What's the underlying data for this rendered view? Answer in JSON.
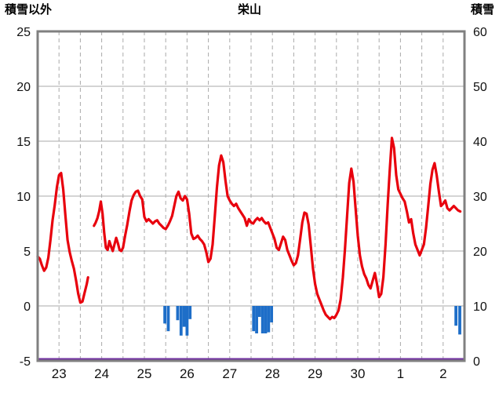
{
  "header": {
    "left_axis_title": "積雪以外",
    "title": "栄山",
    "right_axis_title": "積雪"
  },
  "colors": {
    "temperature_line": "#e8000d",
    "bar": "#1e6ec8",
    "snow_line": "#7030a0",
    "frame": "#808080",
    "grid": "#aaaaaa",
    "tick_text": "#111111",
    "background": "#ffffff"
  },
  "chart_data": {
    "type": "line",
    "title": "栄山",
    "left_axis": {
      "label": "積雪以外",
      "min": -5,
      "max": 25,
      "ticks": [
        25,
        20,
        15,
        10,
        5,
        0,
        -5
      ]
    },
    "right_axis": {
      "label": "積雪",
      "min": 0,
      "max": 60,
      "ticks": [
        60,
        50,
        40,
        30,
        20,
        10,
        0
      ]
    },
    "x_axis": {
      "days": 10,
      "labels": [
        "23",
        "24",
        "25",
        "26",
        "27",
        "28",
        "29",
        "30",
        "1",
        "2"
      ],
      "gridline_interval_days": 0.5,
      "grid_dashed": true
    },
    "series": [
      {
        "name": "積雪以外(気温)",
        "type": "line",
        "axis": "left",
        "points": [
          [
            0.0,
            4.5
          ],
          [
            0.05,
            4.3
          ],
          [
            0.1,
            3.7
          ],
          [
            0.15,
            3.2
          ],
          [
            0.2,
            3.5
          ],
          [
            0.25,
            4.4
          ],
          [
            0.3,
            6.0
          ],
          [
            0.35,
            7.8
          ],
          [
            0.4,
            9.2
          ],
          [
            0.45,
            10.8
          ],
          [
            0.5,
            11.9
          ],
          [
            0.55,
            12.1
          ],
          [
            0.6,
            10.6
          ],
          [
            0.65,
            8.2
          ],
          [
            0.7,
            6.0
          ],
          [
            0.75,
            4.9
          ],
          [
            0.8,
            4.1
          ],
          [
            0.85,
            3.4
          ],
          [
            0.9,
            2.3
          ],
          [
            0.95,
            1.1
          ],
          [
            1.0,
            0.3
          ],
          [
            1.05,
            0.4
          ],
          [
            1.1,
            1.2
          ],
          [
            1.15,
            2.0
          ],
          [
            1.18,
            2.6
          ],
          null,
          [
            1.32,
            7.3
          ],
          [
            1.36,
            7.6
          ],
          [
            1.4,
            8.0
          ],
          [
            1.44,
            8.6
          ],
          [
            1.48,
            9.5
          ],
          [
            1.52,
            8.4
          ],
          [
            1.56,
            6.6
          ],
          [
            1.6,
            5.3
          ],
          [
            1.64,
            5.1
          ],
          [
            1.68,
            5.9
          ],
          [
            1.72,
            5.4
          ],
          [
            1.76,
            5.0
          ],
          [
            1.8,
            5.6
          ],
          [
            1.84,
            6.2
          ],
          [
            1.88,
            5.7
          ],
          [
            1.92,
            5.1
          ],
          [
            1.96,
            5.0
          ],
          [
            2.0,
            5.3
          ],
          [
            2.05,
            6.4
          ],
          [
            2.1,
            7.4
          ],
          [
            2.15,
            8.6
          ],
          [
            2.2,
            9.6
          ],
          [
            2.25,
            10.1
          ],
          [
            2.3,
            10.4
          ],
          [
            2.35,
            10.5
          ],
          [
            2.4,
            10.0
          ],
          [
            2.45,
            9.7
          ],
          [
            2.5,
            8.1
          ],
          [
            2.55,
            7.7
          ],
          [
            2.6,
            7.9
          ],
          [
            2.65,
            7.7
          ],
          [
            2.7,
            7.5
          ],
          [
            2.75,
            7.7
          ],
          [
            2.8,
            7.8
          ],
          [
            2.85,
            7.5
          ],
          [
            2.9,
            7.3
          ],
          [
            2.95,
            7.1
          ],
          [
            3.0,
            7.0
          ],
          [
            3.05,
            7.3
          ],
          [
            3.1,
            7.7
          ],
          [
            3.15,
            8.2
          ],
          [
            3.2,
            9.1
          ],
          [
            3.25,
            10.0
          ],
          [
            3.3,
            10.4
          ],
          [
            3.35,
            9.8
          ],
          [
            3.4,
            9.6
          ],
          [
            3.45,
            10.0
          ],
          [
            3.5,
            9.7
          ],
          [
            3.55,
            8.4
          ],
          [
            3.6,
            6.6
          ],
          [
            3.65,
            6.1
          ],
          [
            3.7,
            6.2
          ],
          [
            3.75,
            6.4
          ],
          [
            3.8,
            6.1
          ],
          [
            3.85,
            5.9
          ],
          [
            3.9,
            5.6
          ],
          [
            3.95,
            4.9
          ],
          [
            4.0,
            4.0
          ],
          [
            4.05,
            4.3
          ],
          [
            4.1,
            5.6
          ],
          [
            4.15,
            8.2
          ],
          [
            4.2,
            10.8
          ],
          [
            4.25,
            12.8
          ],
          [
            4.3,
            13.7
          ],
          [
            4.35,
            13.1
          ],
          [
            4.4,
            11.4
          ],
          [
            4.45,
            10.0
          ],
          [
            4.5,
            9.6
          ],
          [
            4.55,
            9.3
          ],
          [
            4.6,
            9.1
          ],
          [
            4.65,
            9.3
          ],
          [
            4.7,
            8.9
          ],
          [
            4.75,
            8.6
          ],
          [
            4.8,
            8.3
          ],
          [
            4.85,
            8.0
          ],
          [
            4.9,
            7.3
          ],
          [
            4.95,
            7.9
          ],
          [
            5.0,
            7.6
          ],
          [
            5.05,
            7.5
          ],
          [
            5.1,
            7.8
          ],
          [
            5.15,
            8.0
          ],
          [
            5.2,
            7.8
          ],
          [
            5.25,
            8.0
          ],
          [
            5.3,
            7.7
          ],
          [
            5.35,
            7.5
          ],
          [
            5.4,
            7.6
          ],
          [
            5.45,
            7.1
          ],
          [
            5.5,
            6.6
          ],
          [
            5.55,
            6.1
          ],
          [
            5.6,
            5.3
          ],
          [
            5.65,
            5.1
          ],
          [
            5.7,
            5.7
          ],
          [
            5.75,
            6.3
          ],
          [
            5.8,
            6.0
          ],
          [
            5.85,
            5.1
          ],
          [
            5.9,
            4.6
          ],
          [
            5.95,
            4.1
          ],
          [
            6.0,
            3.7
          ],
          [
            6.05,
            3.9
          ],
          [
            6.1,
            4.6
          ],
          [
            6.15,
            6.1
          ],
          [
            6.2,
            7.6
          ],
          [
            6.25,
            8.5
          ],
          [
            6.3,
            8.4
          ],
          [
            6.35,
            7.4
          ],
          [
            6.4,
            5.4
          ],
          [
            6.45,
            3.4
          ],
          [
            6.5,
            2.0
          ],
          [
            6.55,
            1.1
          ],
          [
            6.6,
            0.6
          ],
          [
            6.65,
            0.1
          ],
          [
            6.7,
            -0.4
          ],
          [
            6.75,
            -0.8
          ],
          [
            6.8,
            -1.0
          ],
          [
            6.85,
            -1.2
          ],
          [
            6.9,
            -1.0
          ],
          [
            6.95,
            -1.1
          ],
          [
            7.0,
            -0.8
          ],
          [
            7.05,
            -0.4
          ],
          [
            7.1,
            0.6
          ],
          [
            7.15,
            2.6
          ],
          [
            7.2,
            5.2
          ],
          [
            7.25,
            8.2
          ],
          [
            7.3,
            11.2
          ],
          [
            7.35,
            12.5
          ],
          [
            7.4,
            11.3
          ],
          [
            7.45,
            8.8
          ],
          [
            7.5,
            6.4
          ],
          [
            7.55,
            4.6
          ],
          [
            7.6,
            3.6
          ],
          [
            7.65,
            2.9
          ],
          [
            7.7,
            2.5
          ],
          [
            7.75,
            1.9
          ],
          [
            7.8,
            1.6
          ],
          [
            7.85,
            2.3
          ],
          [
            7.9,
            3.0
          ],
          [
            7.95,
            2.0
          ],
          [
            8.0,
            0.8
          ],
          [
            8.05,
            1.1
          ],
          [
            8.1,
            2.6
          ],
          [
            8.15,
            5.6
          ],
          [
            8.2,
            9.2
          ],
          [
            8.25,
            12.4
          ],
          [
            8.3,
            15.3
          ],
          [
            8.35,
            14.4
          ],
          [
            8.4,
            11.9
          ],
          [
            8.45,
            10.6
          ],
          [
            8.5,
            10.2
          ],
          [
            8.55,
            9.8
          ],
          [
            8.6,
            9.5
          ],
          [
            8.65,
            8.6
          ],
          [
            8.7,
            7.6
          ],
          [
            8.75,
            7.9
          ],
          [
            8.8,
            6.6
          ],
          [
            8.85,
            5.6
          ],
          [
            8.9,
            5.1
          ],
          [
            8.95,
            4.6
          ],
          [
            9.0,
            5.1
          ],
          [
            9.05,
            5.6
          ],
          [
            9.1,
            7.1
          ],
          [
            9.15,
            9.1
          ],
          [
            9.2,
            11.1
          ],
          [
            9.25,
            12.4
          ],
          [
            9.3,
            13.0
          ],
          [
            9.35,
            11.9
          ],
          [
            9.4,
            10.4
          ],
          [
            9.45,
            9.1
          ],
          [
            9.5,
            9.3
          ],
          [
            9.55,
            9.6
          ],
          [
            9.6,
            8.9
          ],
          [
            9.65,
            8.7
          ],
          [
            9.7,
            8.9
          ],
          [
            9.75,
            9.1
          ],
          [
            9.8,
            8.9
          ],
          [
            9.85,
            8.7
          ],
          [
            9.9,
            8.6
          ]
        ]
      },
      {
        "name": "降水バー",
        "type": "bar",
        "axis": "left",
        "baseline": 0,
        "bar_width_days": 0.07,
        "points": [
          [
            2.98,
            1.6
          ],
          [
            3.06,
            2.3
          ],
          [
            3.28,
            1.3
          ],
          [
            3.36,
            2.7
          ],
          [
            3.43,
            1.9
          ],
          [
            3.5,
            2.7
          ],
          [
            3.57,
            1.2
          ],
          [
            5.06,
            2.3
          ],
          [
            5.13,
            2.5
          ],
          [
            5.2,
            1.0
          ],
          [
            5.27,
            2.5
          ],
          [
            5.34,
            2.5
          ],
          [
            5.41,
            2.4
          ],
          [
            5.48,
            1.5
          ],
          [
            9.8,
            1.8
          ],
          [
            9.89,
            2.6
          ]
        ]
      },
      {
        "name": "積雪",
        "type": "line",
        "axis": "right",
        "const_value": 0
      }
    ]
  }
}
